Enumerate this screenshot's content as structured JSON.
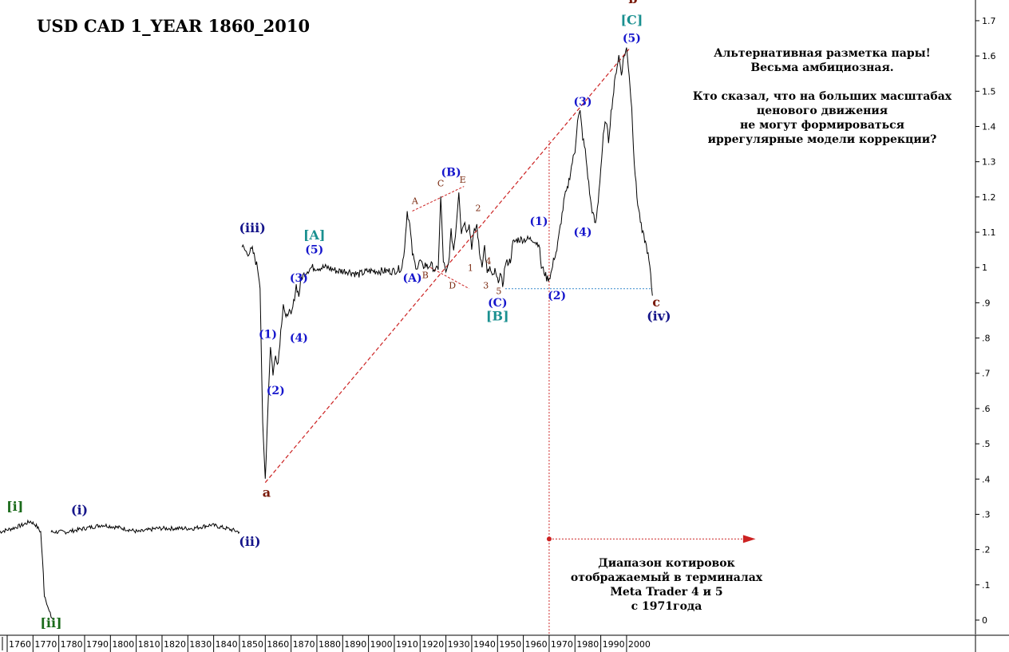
{
  "chart_data": {
    "type": "line",
    "title": "USD CAD 1_YEAR 1860_2010",
    "xlabel": "",
    "ylabel": "",
    "xlim": [
      1757,
      2070
    ],
    "ylim": [
      -0.05,
      1.78
    ],
    "grid": false,
    "y_ticks": [
      {
        "value": 1.7,
        "label": "1.7"
      },
      {
        "value": 1.6,
        "label": "1.6"
      },
      {
        "value": 1.5,
        "label": "1.5"
      },
      {
        "value": 1.4,
        "label": "1.4"
      },
      {
        "value": 1.3,
        "label": "1.3"
      },
      {
        "value": 1.2,
        "label": "1.2"
      },
      {
        "value": 1.1,
        "label": "1.1"
      },
      {
        "value": 1.0,
        "label": "1"
      },
      {
        "value": 0.9,
        "label": ".9"
      },
      {
        "value": 0.8,
        "label": ".8"
      },
      {
        "value": 0.7,
        "label": ".7"
      },
      {
        "value": 0.6,
        "label": ".6"
      },
      {
        "value": 0.5,
        "label": ".5"
      },
      {
        "value": 0.4,
        "label": ".4"
      },
      {
        "value": 0.3,
        "label": ".3"
      },
      {
        "value": 0.2,
        "label": ".2"
      },
      {
        "value": 0.1,
        "label": ".1"
      },
      {
        "value": 0.0,
        "label": "0"
      }
    ],
    "x_ticks": [
      "1760",
      "1770",
      "1780",
      "1790",
      "1800",
      "1810",
      "1820",
      "1830",
      "1840",
      "1850",
      "1860",
      "1870",
      "1880",
      "1890",
      "1900",
      "1910",
      "1920",
      "1930",
      "1940",
      "1950",
      "1960",
      "1970",
      "1980",
      "1990",
      "2000"
    ],
    "series": [
      {
        "values": [
          [
            1757,
            0.25
          ],
          [
            1762,
            0.26
          ],
          [
            1766,
            0.27
          ],
          [
            1769,
            0.28
          ],
          [
            1771,
            0.27
          ],
          [
            1773,
            0.25
          ],
          [
            1774,
            0.13
          ],
          [
            1774.4,
            0.07
          ],
          [
            1775,
            0.06
          ],
          [
            1776,
            0.03
          ],
          [
            1777,
            0.01
          ],
          [
            1778,
            0.0
          ]
        ]
      },
      {
        "values": [
          [
            1777,
            0.25
          ],
          [
            1783,
            0.25
          ],
          [
            1790,
            0.26
          ],
          [
            1797,
            0.27
          ],
          [
            1805,
            0.26
          ],
          [
            1811,
            0.25
          ],
          [
            1818,
            0.26
          ],
          [
            1825,
            0.26
          ],
          [
            1832,
            0.26
          ],
          [
            1839,
            0.27
          ],
          [
            1845,
            0.26
          ],
          [
            1850,
            0.25
          ]
        ]
      },
      {
        "values": [
          [
            1851,
            1.06
          ],
          [
            1853,
            1.04
          ],
          [
            1855,
            1.05
          ],
          [
            1857,
            1.0
          ],
          [
            1858,
            0.95
          ],
          [
            1859,
            0.55
          ],
          [
            1860,
            0.4
          ],
          [
            1861,
            0.6
          ],
          [
            1862,
            0.78
          ],
          [
            1863,
            0.7
          ],
          [
            1864,
            0.75
          ],
          [
            1865,
            0.73
          ],
          [
            1866,
            0.82
          ],
          [
            1867,
            0.9
          ],
          [
            1868,
            0.85
          ],
          [
            1869,
            0.88
          ],
          [
            1870,
            0.86
          ],
          [
            1871,
            0.9
          ],
          [
            1872,
            0.95
          ],
          [
            1873,
            0.92
          ],
          [
            1874,
            0.97
          ],
          [
            1876,
            0.99
          ],
          [
            1878,
            1.0
          ],
          [
            1880,
            1.0
          ],
          [
            1884,
            1.0
          ],
          [
            1888,
            0.99
          ],
          [
            1892,
            0.99
          ],
          [
            1896,
            0.98
          ],
          [
            1900,
            0.99
          ],
          [
            1905,
            0.99
          ],
          [
            1910,
            0.99
          ],
          [
            1913,
            1.0
          ],
          [
            1914,
            1.06
          ],
          [
            1915,
            1.16
          ],
          [
            1916,
            1.12
          ],
          [
            1917,
            1.04
          ],
          [
            1918,
            1.01
          ],
          [
            1919,
            1.0
          ],
          [
            1920,
            1.02
          ],
          [
            1921,
            1.0
          ],
          [
            1922,
            1.01
          ],
          [
            1923,
            1.0
          ],
          [
            1924,
            1.01
          ],
          [
            1925,
            1.0
          ],
          [
            1926,
            0.99
          ],
          [
            1927,
            1.0
          ],
          [
            1928,
            1.2
          ],
          [
            1929,
            1.02
          ],
          [
            1930,
            0.98
          ],
          [
            1931,
            1.01
          ],
          [
            1932,
            1.1
          ],
          [
            1933,
            1.05
          ],
          [
            1934,
            1.12
          ],
          [
            1935,
            1.22
          ],
          [
            1936,
            1.1
          ],
          [
            1937,
            1.13
          ],
          [
            1938,
            1.11
          ],
          [
            1939,
            1.12
          ],
          [
            1940,
            1.06
          ],
          [
            1941,
            1.1
          ],
          [
            1942,
            1.12
          ],
          [
            1943,
            1.04
          ],
          [
            1944,
            1.01
          ],
          [
            1945,
            1.06
          ],
          [
            1946,
            0.98
          ],
          [
            1947,
            1.0
          ],
          [
            1948,
            0.97
          ],
          [
            1949,
            0.99
          ],
          [
            1950,
            0.96
          ],
          [
            1951,
            0.98
          ],
          [
            1952,
            0.95
          ],
          [
            1953,
            1.01
          ],
          [
            1955,
            1.02
          ],
          [
            1956,
            1.07
          ],
          [
            1958,
            1.08
          ],
          [
            1960,
            1.08
          ],
          [
            1962,
            1.08
          ],
          [
            1964,
            1.08
          ],
          [
            1965,
            1.07
          ],
          [
            1966,
            1.07
          ],
          [
            1967,
            1.0
          ],
          [
            1968,
            0.99
          ],
          [
            1969,
            0.97
          ],
          [
            1970,
            0.97
          ],
          [
            1971,
            0.99
          ],
          [
            1972,
            1.03
          ],
          [
            1973,
            1.05
          ],
          [
            1974,
            1.1
          ],
          [
            1975,
            1.15
          ],
          [
            1976,
            1.2
          ],
          [
            1977,
            1.22
          ],
          [
            1978,
            1.26
          ],
          [
            1979,
            1.3
          ],
          [
            1980,
            1.33
          ],
          [
            1981,
            1.42
          ],
          [
            1982,
            1.44
          ],
          [
            1983,
            1.37
          ],
          [
            1984,
            1.33
          ],
          [
            1985,
            1.26
          ],
          [
            1986,
            1.19
          ],
          [
            1987,
            1.15
          ],
          [
            1988,
            1.12
          ],
          [
            1989,
            1.19
          ],
          [
            1990,
            1.28
          ],
          [
            1991,
            1.37
          ],
          [
            1992,
            1.42
          ],
          [
            1993,
            1.36
          ],
          [
            1994,
            1.44
          ],
          [
            1995,
            1.5
          ],
          [
            1996,
            1.56
          ],
          [
            1997,
            1.6
          ],
          [
            1998,
            1.55
          ],
          [
            1999,
            1.6
          ],
          [
            2000,
            1.62
          ],
          [
            2001,
            1.55
          ],
          [
            2002,
            1.45
          ],
          [
            2003,
            1.3
          ],
          [
            2004,
            1.2
          ],
          [
            2005,
            1.15
          ],
          [
            2006,
            1.1
          ],
          [
            2007,
            1.08
          ],
          [
            2008,
            1.05
          ],
          [
            2009,
            1.0
          ],
          [
            2010,
            0.92
          ]
        ]
      }
    ],
    "wave_labels": [
      {
        "text": "b",
        "x": 2002.5,
        "y": 1.75,
        "color": "#7a1a0a"
      },
      {
        "text": "[C]",
        "x": 2002,
        "y": 1.69,
        "color": "#1a9090"
      },
      {
        "text": "(5)",
        "x": 2002,
        "y": 1.64,
        "color": "#1515cc"
      },
      {
        "text": "(3)",
        "x": 1983,
        "y": 1.46,
        "color": "#1515cc"
      },
      {
        "text": "(B)",
        "x": 1932,
        "y": 1.26,
        "color": "#1515cc"
      },
      {
        "text": "C",
        "x": 1928,
        "y": 1.23,
        "color": "#7a2a10"
      },
      {
        "text": "E",
        "x": 1936.5,
        "y": 1.24,
        "color": "#7a2a10"
      },
      {
        "text": "A",
        "x": 1918,
        "y": 1.18,
        "color": "#7a2a10"
      },
      {
        "text": "2",
        "x": 1942.5,
        "y": 1.16,
        "color": "#7a2a10"
      },
      {
        "text": "(1)",
        "x": 1966,
        "y": 1.12,
        "color": "#1515cc"
      },
      {
        "text": "(4)",
        "x": 1983,
        "y": 1.09,
        "color": "#1515cc"
      },
      {
        "text": "(iii)",
        "x": 1855,
        "y": 1.1,
        "color": "#15158a"
      },
      {
        "text": "[A]",
        "x": 1879,
        "y": 1.08,
        "color": "#1a9090"
      },
      {
        "text": "(5)",
        "x": 1879,
        "y": 1.04,
        "color": "#1515cc"
      },
      {
        "text": "4",
        "x": 1946.5,
        "y": 1.01,
        "color": "#7a2a10"
      },
      {
        "text": "1",
        "x": 1939.5,
        "y": 0.99,
        "color": "#7a2a10"
      },
      {
        "text": "B",
        "x": 1922,
        "y": 0.97,
        "color": "#7a2a10"
      },
      {
        "text": "(A)",
        "x": 1917,
        "y": 0.96,
        "color": "#1515cc"
      },
      {
        "text": "(3)",
        "x": 1873,
        "y": 0.96,
        "color": "#1515cc"
      },
      {
        "text": "3",
        "x": 1945.5,
        "y": 0.94,
        "color": "#7a2a10"
      },
      {
        "text": "D",
        "x": 1932.5,
        "y": 0.94,
        "color": "#7a2a10"
      },
      {
        "text": "5",
        "x": 1950.5,
        "y": 0.925,
        "color": "#7a2a10"
      },
      {
        "text": "(2)",
        "x": 1973,
        "y": 0.91,
        "color": "#1515cc"
      },
      {
        "text": "(C)",
        "x": 1950,
        "y": 0.89,
        "color": "#1515cc"
      },
      {
        "text": "c",
        "x": 2011.5,
        "y": 0.89,
        "color": "#7a1a0a"
      },
      {
        "text": "[B]",
        "x": 1950,
        "y": 0.85,
        "color": "#1a9090"
      },
      {
        "text": "(iv)",
        "x": 2012.5,
        "y": 0.85,
        "color": "#15158a"
      },
      {
        "text": "(1)",
        "x": 1861,
        "y": 0.8,
        "color": "#1515cc"
      },
      {
        "text": "(4)",
        "x": 1873,
        "y": 0.79,
        "color": "#1515cc"
      },
      {
        "text": "(2)",
        "x": 1864,
        "y": 0.64,
        "color": "#1515cc"
      },
      {
        "text": "a",
        "x": 1860.5,
        "y": 0.35,
        "color": "#7a1a0a"
      },
      {
        "text": "[i]",
        "x": 1763,
        "y": 0.31,
        "color": "#1a6a1a"
      },
      {
        "text": "(i)",
        "x": 1788,
        "y": 0.3,
        "color": "#15158a"
      },
      {
        "text": "(ii)",
        "x": 1854,
        "y": 0.21,
        "color": "#15158a"
      },
      {
        "text": "[ii]",
        "x": 1777,
        "y": -0.02,
        "color": "#1a6a1a"
      }
    ],
    "colors": {
      "price": "#000000",
      "trendline": "#cc2222",
      "support": "#3388cc",
      "background": "#ffffff"
    }
  },
  "annotation_top": [
    "Альтернативная разметка пары!",
    "Весьма амбициозная.",
    "",
    "Кто сказал, что на больших масштабах",
    "ценового движения",
    "не могут формироваться",
    "иррегулярные модели коррекции?"
  ],
  "annotation_bottom": [
    "Диапазон котировок",
    "отображаемый в терминалах",
    "Meta Trader 4 и 5",
    "с 1971года"
  ]
}
